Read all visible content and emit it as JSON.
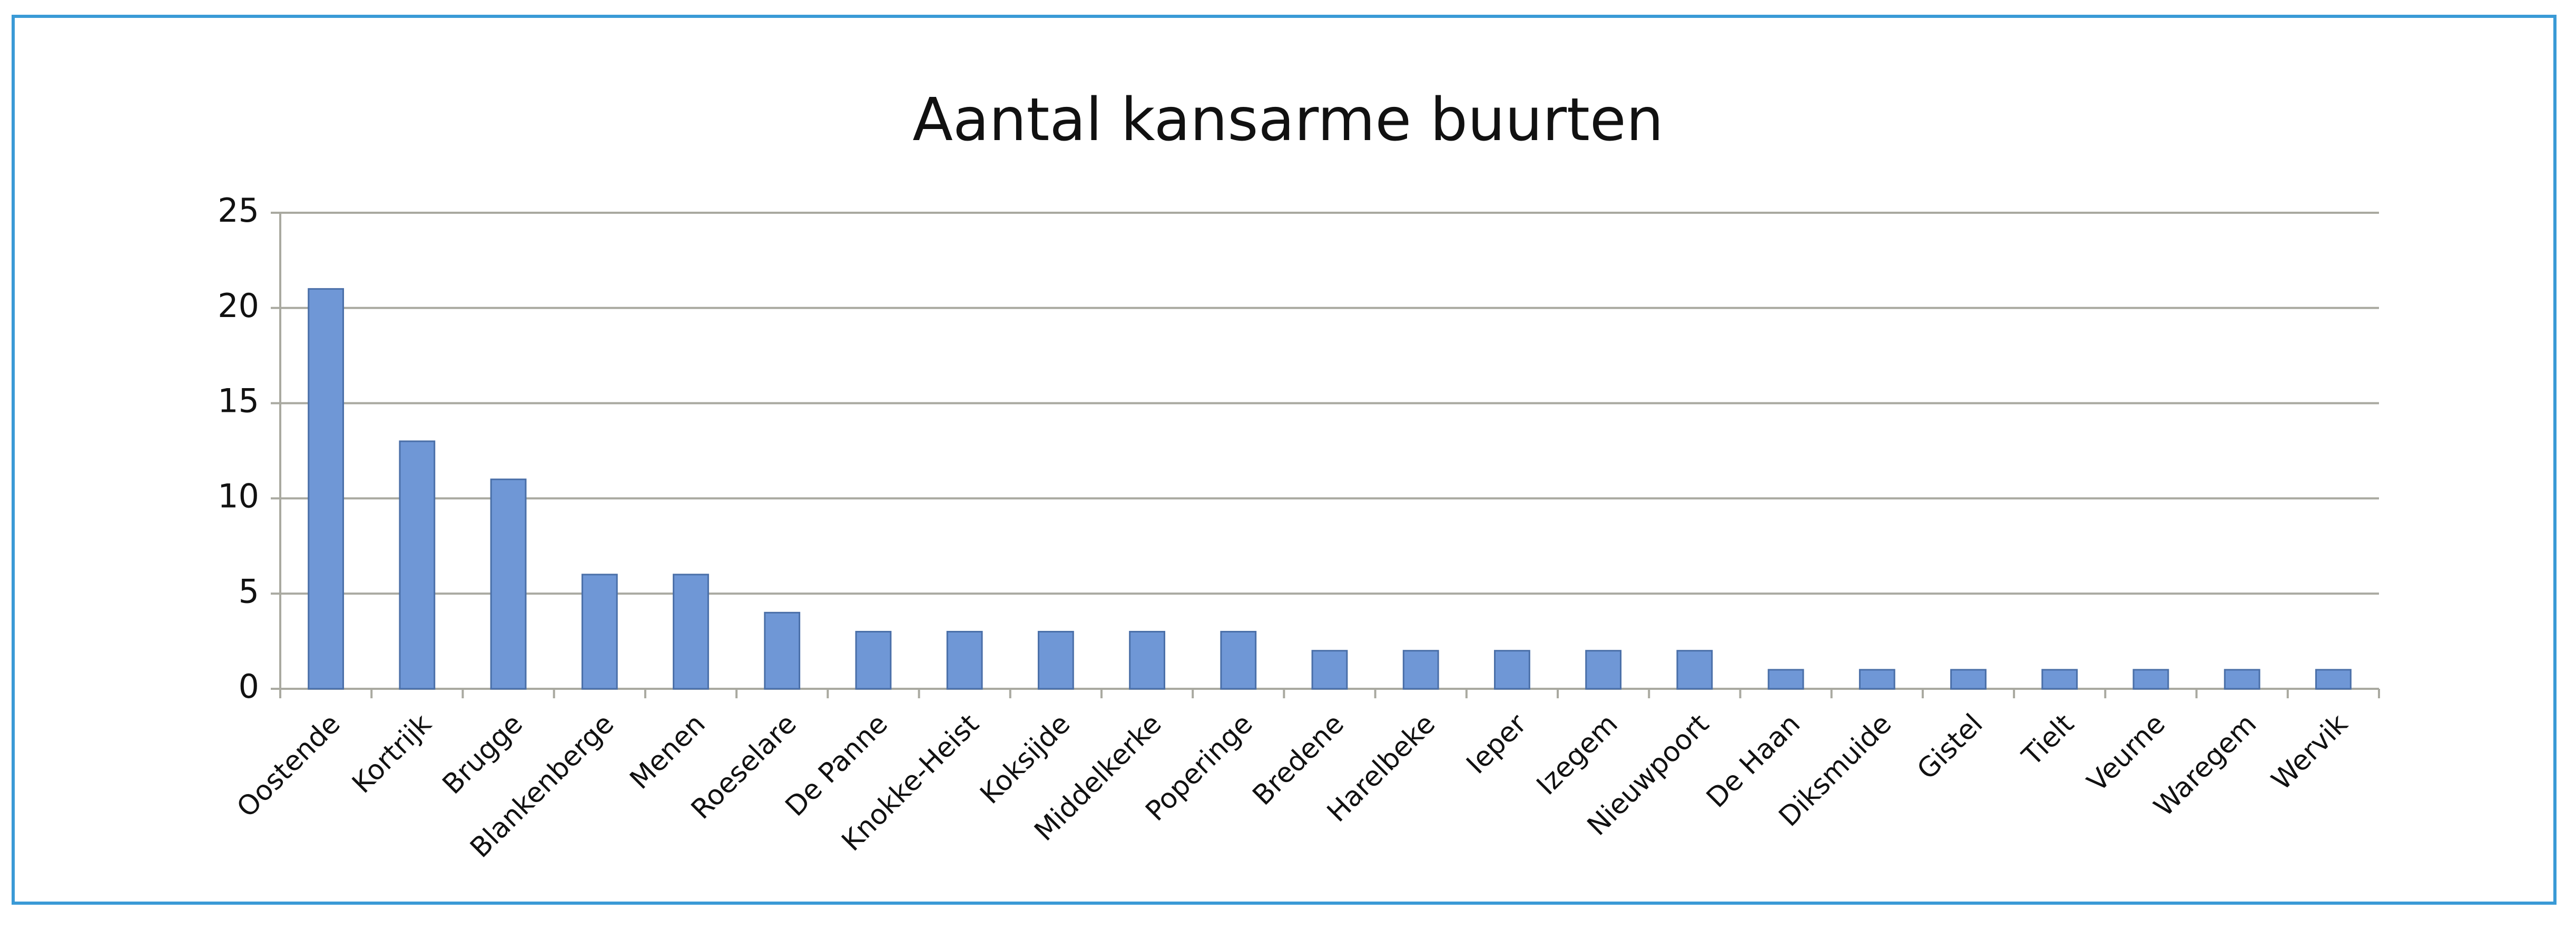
{
  "chart_data": {
    "type": "bar",
    "title": "Aantal kansarme buurten",
    "categories": [
      "Oostende",
      "Kortrijk",
      "Brugge",
      "Blankenberge",
      "Menen",
      "Roeselare",
      "De Panne",
      "Knokke-Heist",
      "Koksijde",
      "Middelkerke",
      "Poperinge",
      "Bredene",
      "Harelbeke",
      "Ieper",
      "Izegem",
      "Nieuwpoort",
      "De Haan",
      "Diksmuide",
      "Gistel",
      "Tielt",
      "Veurne",
      "Waregem",
      "Wervik"
    ],
    "values": [
      21,
      13,
      11,
      6,
      6,
      4,
      3,
      3,
      3,
      3,
      3,
      2,
      2,
      2,
      2,
      2,
      1,
      1,
      1,
      1,
      1,
      1,
      1
    ],
    "color": "#6f97d6",
    "ylim": [
      0,
      25
    ],
    "yticks": [
      0,
      5,
      10,
      15,
      20,
      25
    ],
    "grid": true
  }
}
